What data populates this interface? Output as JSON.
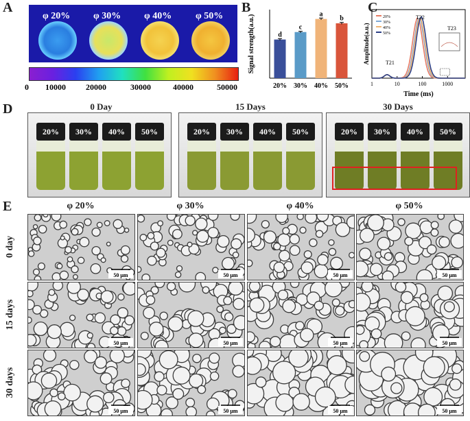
{
  "panel_a": {
    "label": "A",
    "samples": [
      "φ 20%",
      "φ 30%",
      "φ 40%",
      "φ 50%"
    ],
    "colorbar_ticks": [
      "0",
      "10000",
      "20000",
      "30000",
      "40000",
      "50000"
    ]
  },
  "panel_b": {
    "label": "B"
  },
  "panel_c": {
    "label": "C"
  },
  "panel_d": {
    "label": "D",
    "groups": [
      {
        "title": "0 Day",
        "vials": [
          "20%",
          "30%",
          "40%",
          "50%"
        ],
        "liquid_color": "#8da232"
      },
      {
        "title": "15 Days",
        "vials": [
          "20%",
          "30%",
          "40%",
          "50%"
        ],
        "liquid_color": "#8a9a33"
      },
      {
        "title": "30 Days",
        "vials": [
          "20%",
          "30%",
          "40%",
          "50%"
        ],
        "liquid_color": "#6f7d25"
      }
    ]
  },
  "panel_e": {
    "label": "E",
    "columns": [
      "φ 20%",
      "φ 30%",
      "φ 40%",
      "φ 50%"
    ],
    "rows": [
      "0 day",
      "15 days",
      "30 days"
    ],
    "scale_bar": "50 μm"
  },
  "chart_data": [
    {
      "type": "bar",
      "categories": [
        "20%",
        "30%",
        "40%",
        "50%"
      ],
      "values": [
        0.62,
        0.74,
        0.95,
        0.88
      ],
      "errors": [
        0.015,
        0.012,
        0.015,
        0.015
      ],
      "significance_letters": [
        "d",
        "c",
        "a",
        "b"
      ],
      "colors": [
        "#3a4f9a",
        "#5a9bc8",
        "#f0b479",
        "#d9553b"
      ],
      "ylabel": "Signal strength(a.u.)",
      "ylim": [
        0,
        1.1
      ]
    },
    {
      "type": "line",
      "xlabel": "Time (ms)",
      "ylabel": "Amplitude(a.u.)",
      "x_scale": "log",
      "xlim": [
        1,
        5000
      ],
      "x_ticks": [
        "1",
        "10",
        "100",
        "1000"
      ],
      "annotations": [
        "T21",
        "T22",
        "T23"
      ],
      "legend": [
        "20%",
        "30%",
        "40%",
        "50%"
      ],
      "series": [
        {
          "name": "20%",
          "color": "#e87b63",
          "peak_ms": 65,
          "amplitude": 1.0
        },
        {
          "name": "30%",
          "color": "#7fa9d6",
          "peak_ms": 75,
          "amplitude": 1.0
        },
        {
          "name": "40%",
          "color": "#f1b574",
          "peak_ms": 80,
          "amplitude": 1.0
        },
        {
          "name": "50%",
          "color": "#2c3f86",
          "peak_ms": 90,
          "amplitude": 1.02
        }
      ]
    }
  ]
}
